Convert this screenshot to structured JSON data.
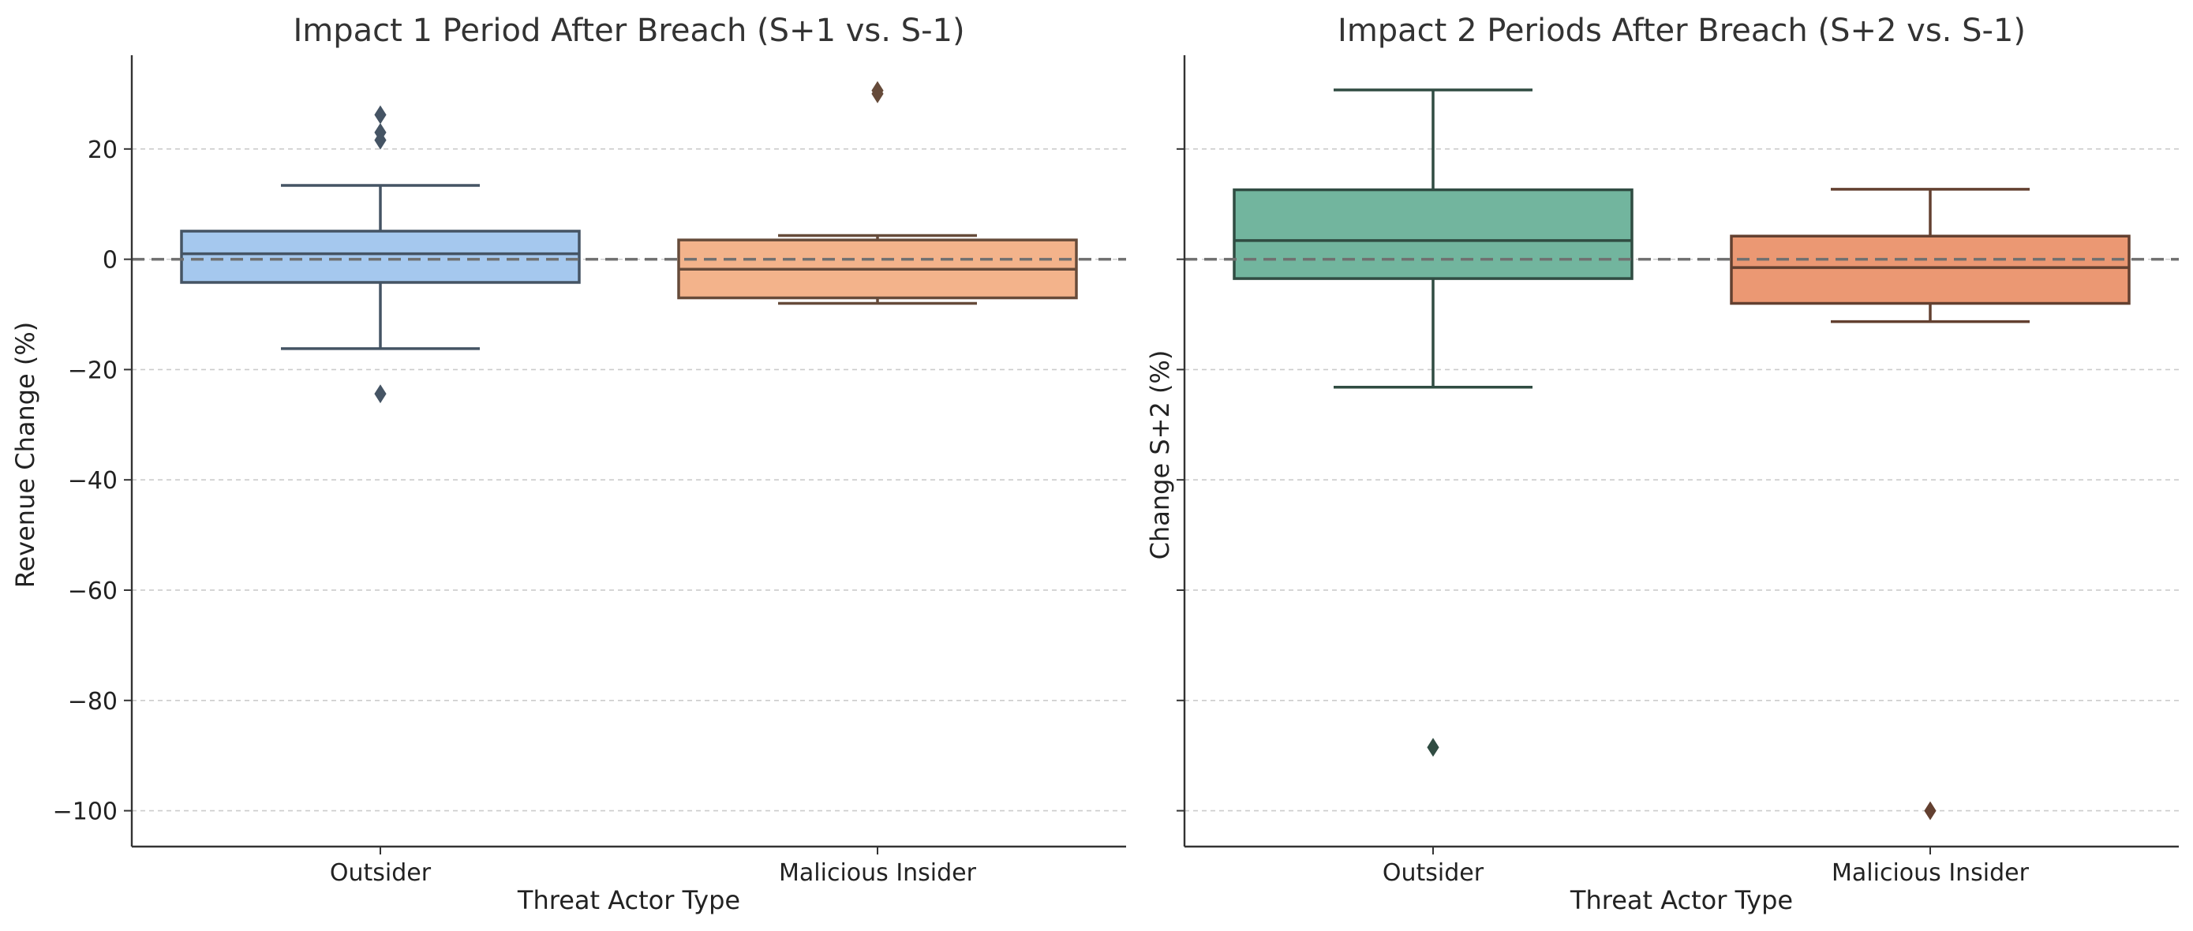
{
  "chart_data": [
    {
      "type": "box",
      "title": "Impact 1 Period After Breach (S+1 vs. S-1)",
      "xlabel": "Threat Actor Type",
      "ylabel": "Revenue Change (%)",
      "categories": [
        "Outsider",
        "Malicious Insider"
      ],
      "ylim": [
        -106.5,
        37
      ],
      "yticks": [
        20,
        0,
        -20,
        -40,
        -60,
        -80,
        -100
      ],
      "ytick_labels": [
        "20",
        "0",
        "−20",
        "−40",
        "−60",
        "−80",
        "−100"
      ],
      "show_ytick_labels": true,
      "grid": true,
      "reference_line": 0,
      "boxes": [
        {
          "category": "Outsider",
          "whislo": -16.2,
          "q1": -4.2,
          "med": 1.0,
          "q3": 5.1,
          "whishi": 13.4,
          "fliers": [
            26.2,
            23.0,
            21.6,
            -24.4
          ],
          "color": "#a5c8ee"
        },
        {
          "category": "Malicious Insider",
          "whislo": -8.0,
          "q1": -7.0,
          "med": -1.8,
          "q3": 3.5,
          "whishi": 4.3,
          "fliers": [
            30.0,
            30.6
          ],
          "color": "#f3b38b"
        }
      ]
    },
    {
      "type": "box",
      "title": "Impact 2 Periods After Breach (S+2 vs. S-1)",
      "xlabel": "Threat Actor Type",
      "ylabel": "Change S+2 (%)",
      "categories": [
        "Outsider",
        "Malicious Insider"
      ],
      "ylim": [
        -106.5,
        37
      ],
      "yticks": [
        20,
        0,
        -20,
        -40,
        -60,
        -80,
        -100
      ],
      "show_ytick_labels": false,
      "grid": true,
      "reference_line": 0,
      "boxes": [
        {
          "category": "Outsider",
          "whislo": -23.2,
          "q1": -3.5,
          "med": 3.4,
          "q3": 12.6,
          "whishi": 30.7,
          "fliers": [
            -88.5
          ],
          "color": "#72b59e"
        },
        {
          "category": "Malicious Insider",
          "whislo": -11.3,
          "q1": -8.0,
          "med": -1.5,
          "q3": 4.2,
          "whishi": 12.7,
          "fliers": [
            -100.0
          ],
          "color": "#eb9873"
        }
      ]
    }
  ]
}
